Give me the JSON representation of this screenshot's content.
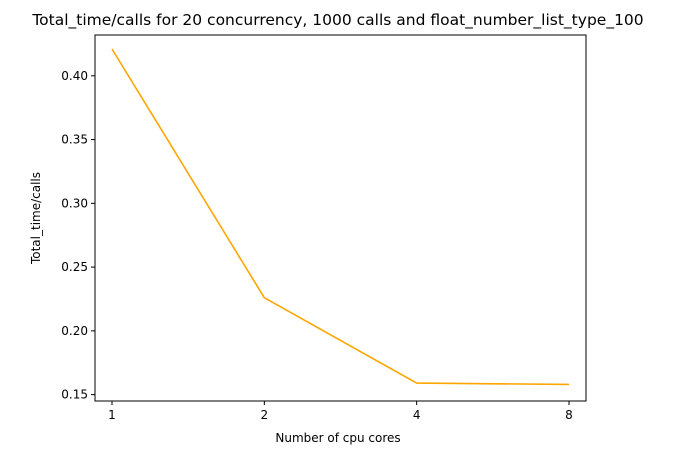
{
  "chart_data": {
    "type": "line",
    "title": "Total_time/calls for 20 concurrency, 1000 calls and float_number_list_type_100",
    "xlabel": "Number of cpu cores",
    "ylabel": "Total_time/calls",
    "categories": [
      "1",
      "2",
      "4",
      "8"
    ],
    "series": [
      {
        "values": [
          0.421,
          0.226,
          0.159,
          0.158
        ],
        "color": "#ffa500"
      }
    ],
    "ylim": [
      0.145,
      0.432
    ],
    "yticks": [
      0.15,
      0.2,
      0.25,
      0.3,
      0.35,
      0.4
    ],
    "ytick_labels": [
      "0.15",
      "0.20",
      "0.25",
      "0.30",
      "0.35",
      "0.40"
    ],
    "grid": false,
    "legend": "none"
  }
}
